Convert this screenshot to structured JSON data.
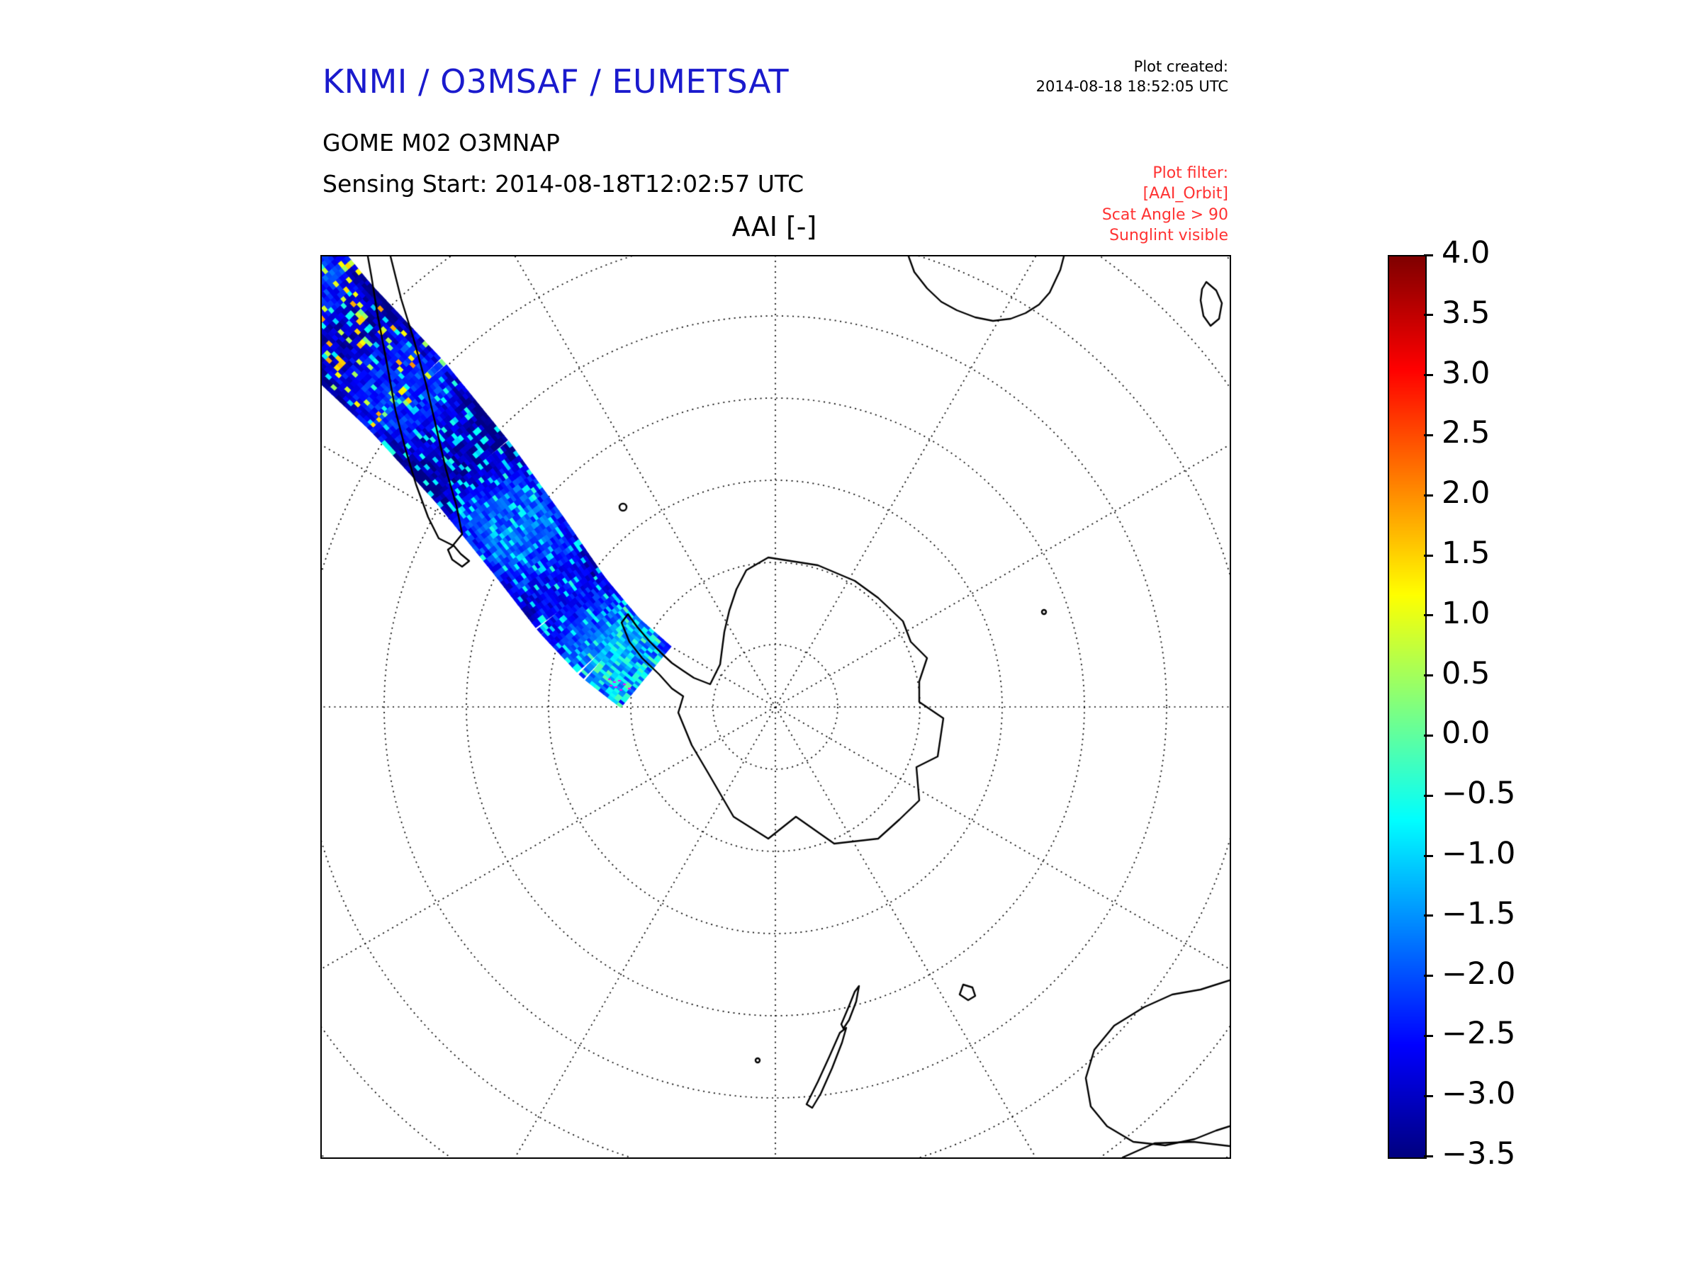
{
  "header": {
    "title": "KNMI / O3MSAF / EUMETSAT",
    "title_color": "#1a1acd",
    "plot_created_label": "Plot created:",
    "plot_created_value": "2014-08-18 18:52:05 UTC",
    "product_line1": "GOME M02 O3MNAP",
    "product_line2": "Sensing Start: 2014-08-18T12:02:57 UTC"
  },
  "plot": {
    "title": "AAI [-]",
    "filter_color": "#ff3232",
    "filter_lines": [
      "Plot filter:",
      "[AAI_Orbit]",
      "Scat Angle > 90",
      "Sunglint visible"
    ]
  },
  "chart_data": {
    "type": "heatmap",
    "title": "AAI [-]",
    "projection": "polar stereographic (South Pole at center)",
    "colormap": "jet",
    "colorbar": {
      "min": -3.5,
      "max": 4.0,
      "tick_step": 0.5,
      "tick_labels": [
        "4.0",
        "3.5",
        "3.0",
        "2.5",
        "2.0",
        "1.5",
        "1.0",
        "0.5",
        "0.0",
        "−0.5",
        "−1.0",
        "−1.5",
        "−2.0",
        "−2.5",
        "−3.0",
        "−3.5"
      ]
    },
    "swath": {
      "name": "AAI_Orbit",
      "description": "Single descending GOME-2 orbit swath entering at the upper-left (southern South America) and ending at the Antarctic Peninsula",
      "typical_value": -2.2,
      "value_range": [
        -3.4,
        2.2
      ],
      "flagged_pixels_color": "#ff00ff"
    },
    "graticule": {
      "parallels": "dotted concentric circles",
      "meridian_spacing_deg": 30
    },
    "basemap": "coastlines of Antarctica (center), South America (upper left), southern Africa (upper right), Australia / Tasmania / New Zealand (lower right)"
  }
}
